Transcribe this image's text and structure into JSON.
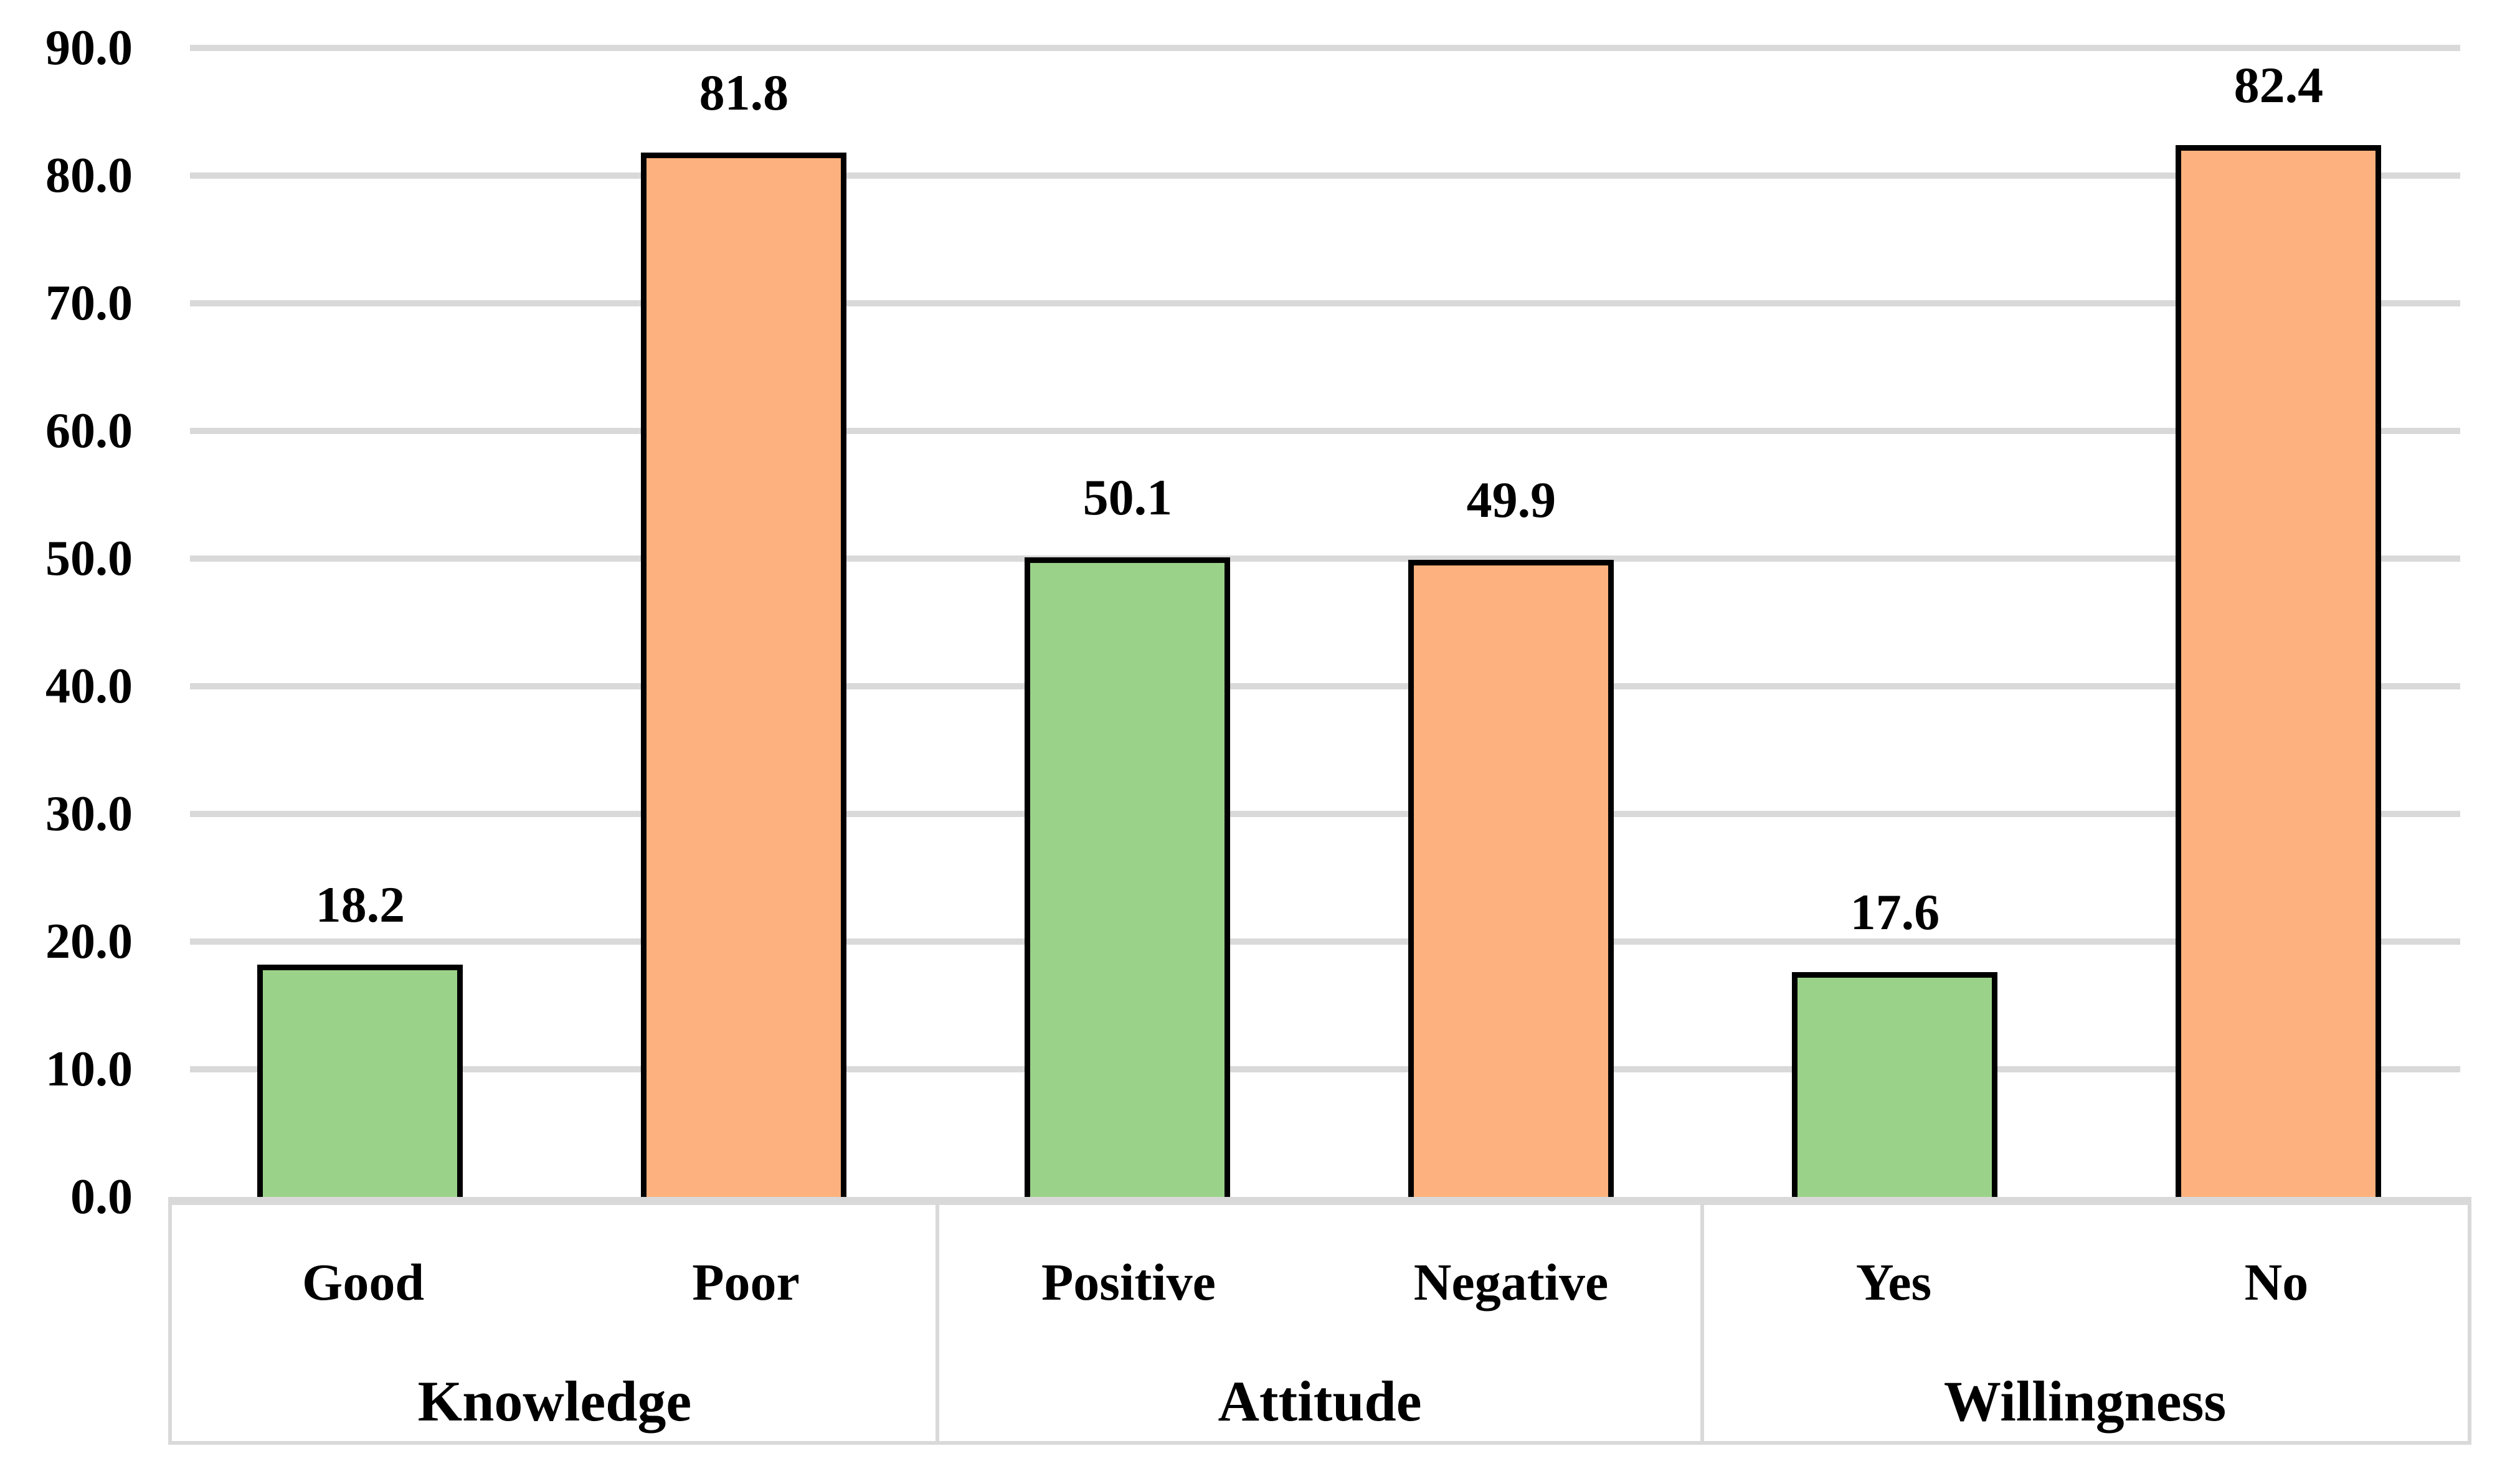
{
  "chart_data": {
    "type": "bar",
    "title": "",
    "xlabel": "",
    "ylabel": "",
    "ylim": [
      0,
      90
    ],
    "ytick_step": 10,
    "grid": true,
    "legend_position": "none",
    "groups": [
      {
        "label": "Knowledge",
        "categories": [
          "Good",
          "Poor"
        ],
        "values": [
          18.2,
          81.8
        ]
      },
      {
        "label": "Attitude",
        "categories": [
          "Positive",
          "Negative"
        ],
        "values": [
          50.1,
          49.9
        ]
      },
      {
        "label": "Willingness",
        "categories": [
          "Yes",
          "No"
        ],
        "values": [
          17.6,
          82.4
        ]
      }
    ],
    "bars": [
      {
        "category": "Good",
        "group": "Knowledge",
        "value": 18.2,
        "label": "18.2",
        "color": "green"
      },
      {
        "category": "Poor",
        "group": "Knowledge",
        "value": 81.8,
        "label": "81.8",
        "color": "orange"
      },
      {
        "category": "Positive",
        "group": "Attitude",
        "value": 50.1,
        "label": "50.1",
        "color": "green"
      },
      {
        "category": "Negative",
        "group": "Attitude",
        "value": 49.9,
        "label": "49.9",
        "color": "orange"
      },
      {
        "category": "Yes",
        "group": "Willingness",
        "value": 17.6,
        "label": "17.6",
        "color": "green"
      },
      {
        "category": "No",
        "group": "Willingness",
        "value": 82.4,
        "label": "82.4",
        "color": "orange"
      }
    ],
    "colors": {
      "green": "#9BD289",
      "orange": "#FCB17E",
      "bar_border": "#000000",
      "gridline": "#D9D9D9",
      "axis_line": "#D9D9D9",
      "band_border": "#D9D9D9",
      "text": "#000000",
      "background": "#FFFFFF"
    }
  },
  "yaxis": {
    "tick_labels": [
      "90.0",
      "80.0",
      "70.0",
      "60.0",
      "50.0",
      "40.0",
      "30.0",
      "20.0",
      "10.0",
      "0.0"
    ]
  }
}
